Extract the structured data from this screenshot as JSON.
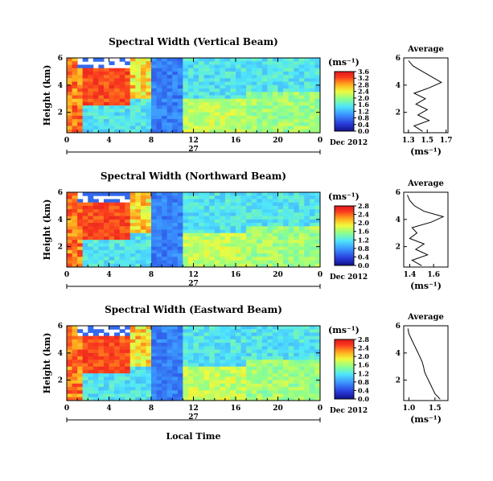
{
  "chart_data": [
    {
      "type": "heatmap",
      "title": "Spectral Width (Vertical Beam)",
      "ylabel": "Height (km)",
      "x_ticks": [
        "0",
        "4",
        "8",
        "12",
        "16",
        "20",
        "0"
      ],
      "xlim": [
        0,
        24
      ],
      "y_ticks": [
        "2",
        "4",
        "6"
      ],
      "ylim": [
        0.5,
        6
      ],
      "date_tick": "27",
      "date_label": "Dec 2012",
      "colorbar": {
        "unit": "(ms⁻¹)",
        "ticks": [
          "0.0",
          "0.4",
          "0.8",
          "1.2",
          "1.6",
          "2.0",
          "2.4",
          "2.8",
          "3.2",
          "3.6"
        ],
        "range": [
          0,
          3.6
        ]
      },
      "profile": {
        "title": "Average",
        "x_ticks": [
          "1.3",
          "1.5",
          "1.7"
        ],
        "xlim": [
          1.25,
          1.72
        ],
        "y_ticks": [
          "2",
          "4",
          "6"
        ],
        "xlabel": "(ms⁻¹)",
        "heights": [
          0.6,
          1.0,
          1.4,
          1.8,
          2.2,
          2.6,
          3.0,
          3.4,
          3.8,
          4.2,
          4.6,
          5.0,
          5.4,
          5.8
        ],
        "values": [
          1.45,
          1.36,
          1.52,
          1.4,
          1.5,
          1.38,
          1.48,
          1.36,
          1.52,
          1.65,
          1.55,
          1.45,
          1.35,
          1.3
        ]
      }
    },
    {
      "type": "heatmap",
      "title": "Spectral Width (Northward Beam)",
      "ylabel": "Height (km)",
      "x_ticks": [
        "0",
        "4",
        "8",
        "12",
        "16",
        "20",
        "0"
      ],
      "xlim": [
        0,
        24
      ],
      "y_ticks": [
        "2",
        "4",
        "6"
      ],
      "ylim": [
        0.5,
        6
      ],
      "date_tick": "27",
      "date_label": "Dec 2012",
      "colorbar": {
        "unit": "(ms⁻¹)",
        "ticks": [
          "0.0",
          "0.4",
          "0.8",
          "1.2",
          "1.6",
          "2.0",
          "2.4",
          "2.8"
        ],
        "range": [
          0,
          2.8
        ]
      },
      "profile": {
        "title": "Average",
        "x_ticks": [
          "1.4",
          "1.6"
        ],
        "xlim": [
          1.35,
          1.72
        ],
        "y_ticks": [
          "2",
          "4",
          "6"
        ],
        "xlabel": "(ms⁻¹)",
        "heights": [
          0.6,
          1.0,
          1.4,
          1.8,
          2.2,
          2.6,
          3.0,
          3.4,
          3.8,
          4.2,
          4.6,
          5.0,
          5.4,
          5.8
        ],
        "values": [
          1.5,
          1.42,
          1.55,
          1.45,
          1.52,
          1.4,
          1.46,
          1.42,
          1.58,
          1.68,
          1.52,
          1.44,
          1.4,
          1.38
        ]
      }
    },
    {
      "type": "heatmap",
      "title": "Spectral Width (Eastward Beam)",
      "ylabel": "Height (km)",
      "x_ticks": [
        "0",
        "4",
        "8",
        "12",
        "16",
        "20",
        "0"
      ],
      "xlim": [
        0,
        24
      ],
      "y_ticks": [
        "2",
        "4",
        "6"
      ],
      "ylim": [
        0.5,
        6
      ],
      "date_tick": "27",
      "date_label": "Dec 2012",
      "xlabel": "Local Time",
      "colorbar": {
        "unit": "(ms⁻¹)",
        "ticks": [
          "0.0",
          "0.4",
          "0.8",
          "1.2",
          "1.6",
          "2.0",
          "2.4",
          "2.8"
        ],
        "range": [
          0,
          2.8
        ]
      },
      "profile": {
        "title": "Average",
        "x_ticks": [
          "1.0",
          "1.5"
        ],
        "xlim": [
          0.9,
          1.75
        ],
        "y_ticks": [
          "2",
          "4",
          "6"
        ],
        "xlabel": "(ms⁻¹)",
        "heights": [
          0.6,
          1.0,
          1.4,
          1.8,
          2.2,
          2.6,
          3.0,
          3.4,
          3.8,
          4.2,
          4.6,
          5.0,
          5.4,
          5.8
        ],
        "values": [
          1.6,
          1.5,
          1.45,
          1.4,
          1.35,
          1.3,
          1.28,
          1.25,
          1.2,
          1.15,
          1.1,
          1.05,
          1.0,
          0.98
        ]
      }
    }
  ]
}
